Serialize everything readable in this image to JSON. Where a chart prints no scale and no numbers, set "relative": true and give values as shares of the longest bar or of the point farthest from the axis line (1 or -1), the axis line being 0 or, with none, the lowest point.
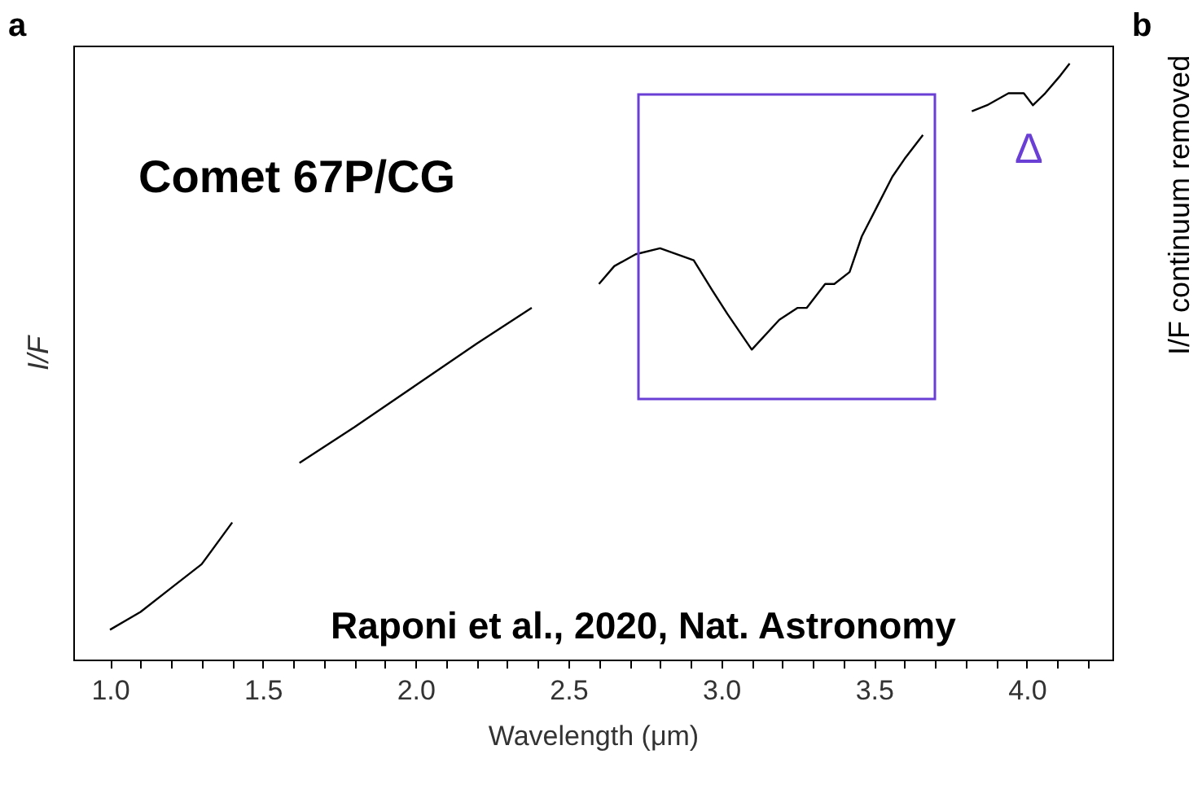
{
  "chart_data": {
    "type": "line",
    "xlabel": "Wavelength (μm)",
    "ylabel": "I/F",
    "relative": true,
    "x": [
      1.0,
      1.1,
      1.2,
      1.3,
      1.4,
      1.5,
      1.62,
      1.8,
      2.0,
      2.2,
      2.38,
      2.5,
      2.6,
      2.65,
      2.72,
      2.8,
      2.91,
      2.97,
      3.02,
      3.1,
      3.19,
      3.25,
      3.28,
      3.34,
      3.37,
      3.42,
      3.46,
      3.51,
      3.56,
      3.6,
      3.66,
      3.75,
      3.82,
      3.87,
      3.94,
      3.99,
      4.02,
      4.06,
      4.11,
      4.14
    ],
    "series": [
      {
        "color": "#000000",
        "values": [
          0.05,
          0.08,
          0.12,
          0.16,
          0.23,
          null,
          0.33,
          0.39,
          0.46,
          0.53,
          0.59,
          null,
          0.63,
          0.66,
          0.68,
          0.69,
          0.67,
          0.62,
          0.58,
          0.52,
          0.57,
          0.59,
          0.59,
          0.63,
          0.63,
          0.65,
          0.71,
          0.76,
          0.81,
          0.84,
          0.88,
          null,
          0.92,
          0.93,
          0.95,
          0.95,
          0.93,
          0.95,
          0.98,
          1.0
        ]
      }
    ],
    "xlim": [
      0.88,
      4.28
    ],
    "xticks": [
      {
        "value": 1.0,
        "label": "1.0"
      },
      {
        "value": 1.1,
        "label": null
      },
      {
        "value": 1.2,
        "label": null
      },
      {
        "value": 1.3,
        "label": null
      },
      {
        "value": 1.4,
        "label": null
      },
      {
        "value": 1.5,
        "label": "1.5"
      },
      {
        "value": 1.6,
        "label": null
      },
      {
        "value": 1.7,
        "label": null
      },
      {
        "value": 1.8,
        "label": null
      },
      {
        "value": 1.9,
        "label": null
      },
      {
        "value": 2.0,
        "label": "2.0"
      },
      {
        "value": 2.1,
        "label": null
      },
      {
        "value": 2.2,
        "label": null
      },
      {
        "value": 2.3,
        "label": null
      },
      {
        "value": 2.4,
        "label": null
      },
      {
        "value": 2.5,
        "label": "2.5"
      },
      {
        "value": 2.6,
        "label": null
      },
      {
        "value": 2.7,
        "label": null
      },
      {
        "value": 2.8,
        "label": null
      },
      {
        "value": 2.9,
        "label": null
      },
      {
        "value": 3.0,
        "label": "3.0"
      },
      {
        "value": 3.1,
        "label": null
      },
      {
        "value": 3.2,
        "label": null
      },
      {
        "value": 3.3,
        "label": null
      },
      {
        "value": 3.4,
        "label": null
      },
      {
        "value": 3.5,
        "label": "3.5"
      },
      {
        "value": 3.6,
        "label": null
      },
      {
        "value": 3.7,
        "label": null
      },
      {
        "value": 3.8,
        "label": null
      },
      {
        "value": 3.9,
        "label": null
      },
      {
        "value": 4.0,
        "label": "4.0"
      },
      {
        "value": 4.1,
        "label": null
      },
      {
        "value": 4.2,
        "label": null
      }
    ],
    "marker": "none",
    "line_style": "solid",
    "grid": false,
    "annotations": [
      "a",
      "Comet 67P/CG",
      "Raponi et al., 2020, Nat. Astronomy",
      "b",
      "I/F continuum removed",
      "Δ"
    ]
  }
}
